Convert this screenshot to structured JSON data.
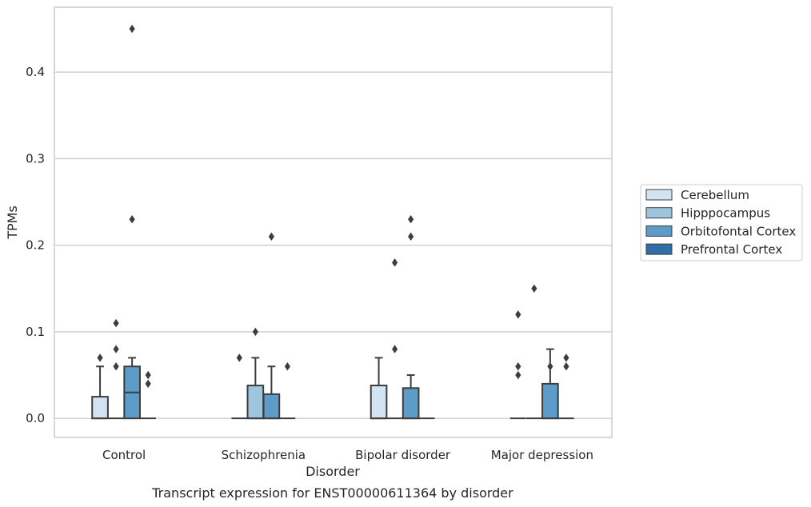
{
  "chart_data": {
    "type": "box",
    "caption": "Transcript expression for ENST00000611364 by disorder",
    "xlabel": "Disorder",
    "ylabel": "TPMs",
    "ylim": [
      -0.022,
      0.475
    ],
    "yticks": [
      0.0,
      0.1,
      0.2,
      0.3,
      0.4
    ],
    "ytick_labels": [
      "0.0",
      "0.1",
      "0.2",
      "0.3",
      "0.4"
    ],
    "grid": "horizontal",
    "legend_position": "right",
    "categories": [
      "Control",
      "Schizophrenia",
      "Bipolar disorder",
      "Major depression"
    ],
    "series": [
      {
        "name": "Cerebellum",
        "color": "#d4e3f2",
        "boxes": [
          {
            "category": "Control",
            "q1": 0.0,
            "median": 0.0,
            "q3": 0.025,
            "whisker_low": 0.0,
            "whisker_high": 0.06,
            "outliers": [
              0.07
            ]
          },
          {
            "category": "Schizophrenia",
            "q1": 0.0,
            "median": 0.0,
            "q3": 0.0,
            "whisker_low": 0.0,
            "whisker_high": 0.0,
            "outliers": [
              0.07
            ]
          },
          {
            "category": "Bipolar disorder",
            "q1": 0.0,
            "median": 0.0,
            "q3": 0.038,
            "whisker_low": 0.0,
            "whisker_high": 0.07,
            "outliers": []
          },
          {
            "category": "Major depression",
            "q1": 0.0,
            "median": 0.0,
            "q3": 0.0,
            "whisker_low": 0.0,
            "whisker_high": 0.0,
            "outliers": [
              0.05,
              0.06,
              0.12
            ]
          }
        ]
      },
      {
        "name": "Hipppocampus",
        "color": "#9ec4de",
        "boxes": [
          {
            "category": "Control",
            "q1": 0.0,
            "median": 0.0,
            "q3": 0.0,
            "whisker_low": 0.0,
            "whisker_high": 0.0,
            "outliers": [
              0.06,
              0.08,
              0.11
            ]
          },
          {
            "category": "Schizophrenia",
            "q1": 0.0,
            "median": 0.0,
            "q3": 0.038,
            "whisker_low": 0.0,
            "whisker_high": 0.07,
            "outliers": [
              0.1
            ]
          },
          {
            "category": "Bipolar disorder",
            "q1": 0.0,
            "median": 0.0,
            "q3": 0.0,
            "whisker_low": 0.0,
            "whisker_high": 0.0,
            "outliers": [
              0.08,
              0.18
            ]
          },
          {
            "category": "Major depression",
            "q1": 0.0,
            "median": 0.0,
            "q3": 0.0,
            "whisker_low": 0.0,
            "whisker_high": 0.0,
            "outliers": [
              0.15
            ]
          }
        ]
      },
      {
        "name": "Orbitofontal Cortex",
        "color": "#5d9cc8",
        "boxes": [
          {
            "category": "Control",
            "q1": 0.0,
            "median": 0.03,
            "q3": 0.06,
            "whisker_low": 0.0,
            "whisker_high": 0.07,
            "outliers": [
              0.23,
              0.45
            ]
          },
          {
            "category": "Schizophrenia",
            "q1": 0.0,
            "median": 0.0,
            "q3": 0.028,
            "whisker_low": 0.0,
            "whisker_high": 0.06,
            "outliers": [
              0.21
            ]
          },
          {
            "category": "Bipolar disorder",
            "q1": 0.0,
            "median": 0.0,
            "q3": 0.035,
            "whisker_low": 0.0,
            "whisker_high": 0.05,
            "outliers": [
              0.21,
              0.23
            ]
          },
          {
            "category": "Major depression",
            "q1": 0.0,
            "median": 0.0,
            "q3": 0.04,
            "whisker_low": 0.0,
            "whisker_high": 0.08,
            "outliers": [
              0.06
            ]
          }
        ]
      },
      {
        "name": "Prefrontal Cortex",
        "color": "#2f6ea8",
        "boxes": [
          {
            "category": "Control",
            "q1": 0.0,
            "median": 0.0,
            "q3": 0.0,
            "whisker_low": 0.0,
            "whisker_high": 0.0,
            "outliers": [
              0.04,
              0.05
            ]
          },
          {
            "category": "Schizophrenia",
            "q1": 0.0,
            "median": 0.0,
            "q3": 0.0,
            "whisker_low": 0.0,
            "whisker_high": 0.0,
            "outliers": [
              0.06
            ]
          },
          {
            "category": "Bipolar disorder",
            "q1": 0.0,
            "median": 0.0,
            "q3": 0.0,
            "whisker_low": 0.0,
            "whisker_high": 0.0,
            "outliers": []
          },
          {
            "category": "Major depression",
            "q1": 0.0,
            "median": 0.0,
            "q3": 0.0,
            "whisker_low": 0.0,
            "whisker_high": 0.0,
            "outliers": [
              0.06,
              0.07
            ]
          }
        ]
      }
    ],
    "colors": {
      "grid": "#cccccc",
      "frame": "#cccccc",
      "box_edge": "#3d3d3d"
    }
  }
}
